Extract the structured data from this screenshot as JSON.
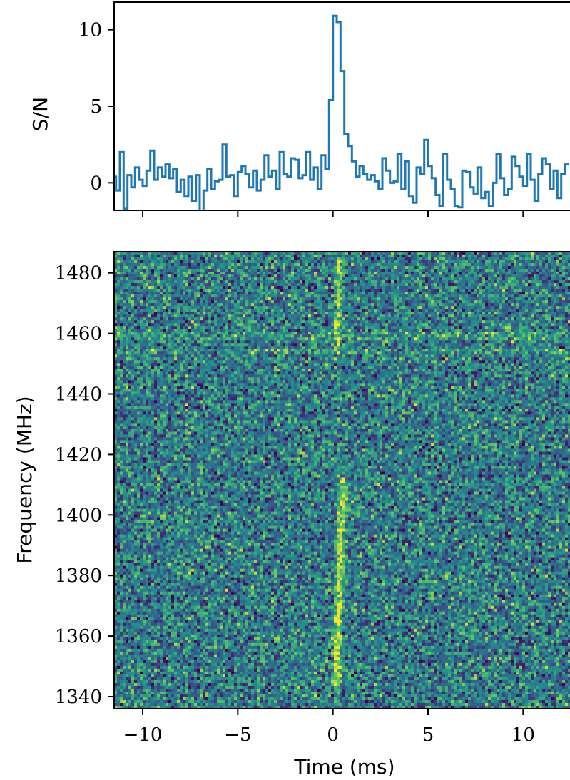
{
  "chart_data": [
    {
      "type": "line",
      "panel": "pulse-profile",
      "xlabel": "",
      "ylabel": "S/N",
      "xlim": [
        -11.5,
        12.5
      ],
      "ylim": [
        -1.8,
        11.8
      ],
      "yticks": [
        0,
        5,
        10
      ],
      "ytick_labels": [
        "0",
        "5",
        "10"
      ],
      "xticks": [
        -10,
        -5,
        0,
        5,
        10
      ],
      "grid": false,
      "style": "steps-mid",
      "color": "#1f77b4",
      "series": [
        {
          "x": [
            -11.5,
            -11.3,
            -11.1,
            -10.9,
            -10.7,
            -10.5,
            -10.3,
            -10.1,
            -9.9,
            -9.7,
            -9.5,
            -9.3,
            -9.1,
            -8.9,
            -8.7,
            -8.5,
            -8.3,
            -8.1,
            -7.9,
            -7.7,
            -7.5,
            -7.3,
            -7.1,
            -6.9,
            -6.7,
            -6.5,
            -6.3,
            -6.1,
            -5.9,
            -5.7,
            -5.5,
            -5.3,
            -5.1,
            -4.9,
            -4.7,
            -4.5,
            -4.3,
            -4.1,
            -3.9,
            -3.7,
            -3.5,
            -3.3,
            -3.1,
            -2.9,
            -2.7,
            -2.5,
            -2.3,
            -2.1,
            -1.9,
            -1.7,
            -1.5,
            -1.3,
            -1.1,
            -0.9,
            -0.7,
            -0.5,
            -0.3,
            -0.1,
            0.1,
            0.3,
            0.5,
            0.7,
            0.9,
            1.1,
            1.3,
            1.5,
            1.7,
            1.9,
            2.1,
            2.3,
            2.5,
            2.7,
            2.9,
            3.1,
            3.3,
            3.5,
            3.7,
            3.9,
            4.1,
            4.3,
            4.5,
            4.7,
            4.9,
            5.1,
            5.3,
            5.5,
            5.7,
            5.9,
            6.1,
            6.3,
            6.5,
            6.7,
            6.9,
            7.1,
            7.3,
            7.5,
            7.7,
            7.9,
            8.1,
            8.3,
            8.5,
            8.7,
            8.9,
            9.1,
            9.3,
            9.5,
            9.7,
            9.9,
            10.1,
            10.3,
            10.5,
            10.7,
            10.9,
            11.1,
            11.3,
            11.5,
            11.7,
            11.9,
            12.1,
            12.3
          ],
          "y": [
            0.4,
            -0.5,
            2.0,
            -1.7,
            0.5,
            -0.3,
            1.0,
            0.2,
            -0.2,
            0.8,
            2.1,
            0.2,
            1.0,
            0.4,
            1.2,
            0.3,
            0.9,
            -0.6,
            0.2,
            -0.9,
            0.4,
            -1.2,
            0.5,
            -1.9,
            -0.5,
            0.9,
            -0.4,
            0.1,
            0.2,
            2.5,
            0.4,
            0.5,
            -0.9,
            0.7,
            1.1,
            0.6,
            -0.3,
            0.8,
            -0.5,
            0.2,
            1.8,
            0.4,
            0.8,
            -0.4,
            2.0,
            0.6,
            0.4,
            1.6,
            1.5,
            0.3,
            0.5,
            2.0,
            0.2,
            1.0,
            -0.4,
            1.8,
            0.9,
            5.4,
            10.9,
            10.5,
            7.3,
            3.2,
            2.4,
            1.4,
            0.4,
            1.1,
            0.6,
            0.2,
            0.5,
            0.1,
            -0.4,
            1.6,
            0.8,
            0.0,
            0.1,
            1.9,
            -0.4,
            1.4,
            -0.9,
            -1.3,
            1.0,
            0.6,
            2.8,
            1.1,
            0.3,
            -0.8,
            -1.5,
            1.9,
            0.2,
            -0.4,
            -1.5,
            -1.6,
            0.8,
            0.7,
            -0.3,
            -0.7,
            1.0,
            -1.0,
            -0.6,
            -1.5,
            0.0,
            1.9,
            0.3,
            -0.8,
            -0.4,
            1.7,
            1.1,
            0.4,
            -0.2,
            1.9,
            0.2,
            -1.2,
            0.6,
            1.6,
            1.2,
            -0.4,
            0.8,
            -1.0,
            0.6,
            1.2
          ]
        }
      ]
    },
    {
      "type": "heatmap",
      "panel": "dynamic-spectrum",
      "xlabel": "Time (ms)",
      "ylabel": "Frequency (MHz)",
      "xlim": [
        -11.5,
        12.5
      ],
      "ylim": [
        1336,
        1487
      ],
      "xticks": [
        -10,
        -5,
        0,
        5,
        10
      ],
      "xtick_labels": [
        "−10",
        "−5",
        "0",
        "5",
        "10"
      ],
      "yticks": [
        1340,
        1360,
        1380,
        1400,
        1420,
        1440,
        1460,
        1480
      ],
      "ytick_labels": [
        "1340",
        "1360",
        "1380",
        "1400",
        "1420",
        "1440",
        "1460",
        "1480"
      ],
      "colormap": "viridis",
      "grid": false,
      "colors": {
        "low": "#440154",
        "mid": "#21908c",
        "high": "#fde725"
      },
      "pulse": {
        "time_ms": 0.2,
        "width_ms": 0.3,
        "segments": [
          {
            "f_low": 1344,
            "f_high": 1382,
            "x_at_low": 0.15,
            "x_at_high": 0.35,
            "strength": 1.0
          },
          {
            "f_low": 1382,
            "f_high": 1412,
            "x_at_low": 0.35,
            "x_at_high": 0.55,
            "strength": 0.75
          },
          {
            "f_low": 1455,
            "f_high": 1485,
            "x_at_low": 0.25,
            "x_at_high": 0.3,
            "strength": 0.55
          }
        ]
      },
      "rfi_rows": [
        1459,
        1454
      ]
    }
  ]
}
